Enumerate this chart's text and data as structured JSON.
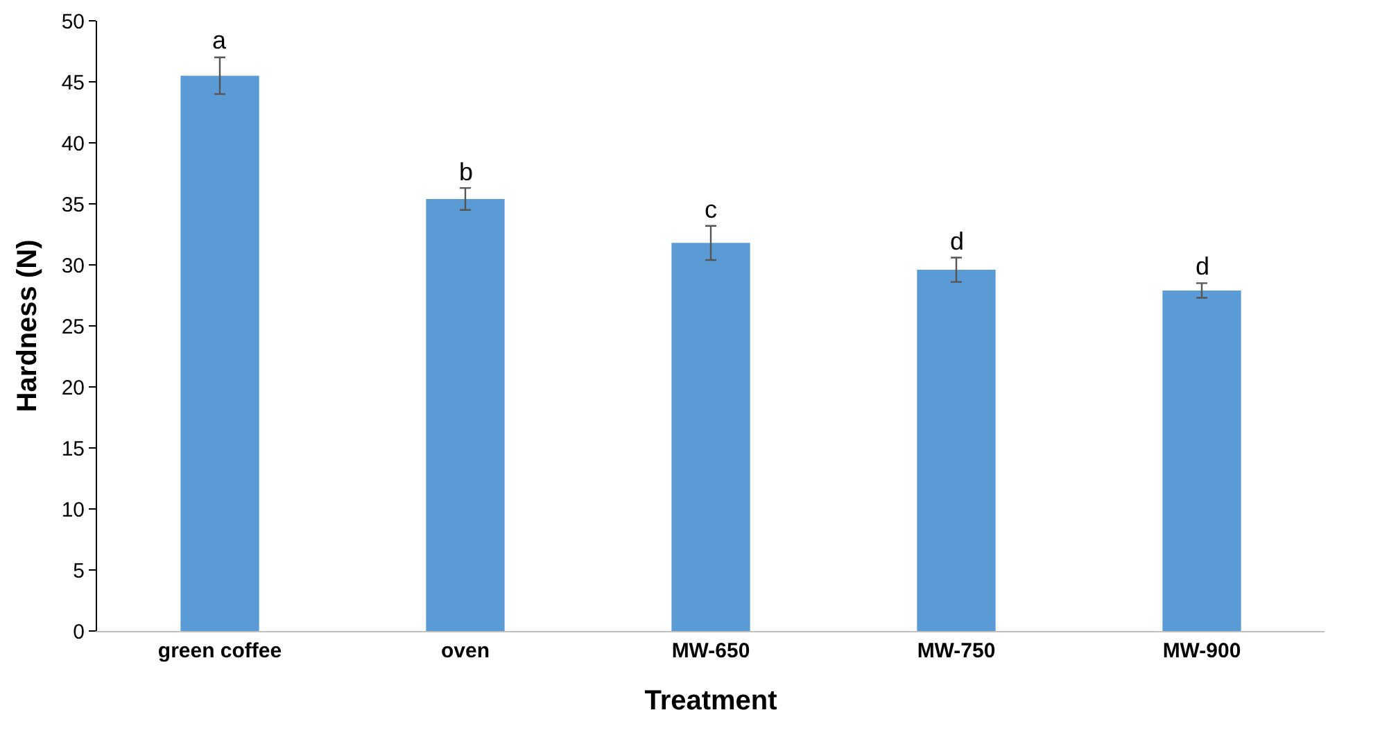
{
  "chart_data": {
    "type": "bar",
    "xlabel": "Treatment",
    "ylabel": "Hardness (N)",
    "categories": [
      "green coffee",
      "oven",
      "MW-650",
      "MW-750",
      "MW-900"
    ],
    "values": [
      45.5,
      35.4,
      31.8,
      29.6,
      27.9
    ],
    "errors": [
      1.5,
      0.9,
      1.4,
      1.0,
      0.6
    ],
    "color": "#5b9bd5",
    "ylim": [
      0,
      50
    ],
    "yticks": [
      0,
      5,
      10,
      15,
      20,
      25,
      30,
      35,
      40,
      45,
      50
    ],
    "grid": false,
    "annotations": [
      {
        "text": "a",
        "x": "green coffee",
        "y": 47
      },
      {
        "text": "b",
        "x": "oven",
        "y": 36.3
      },
      {
        "text": "c",
        "x": "MW-650",
        "y": 33.2
      },
      {
        "text": "d",
        "x": "MW-750",
        "y": 30.6
      },
      {
        "text": "d",
        "x": "MW-900",
        "y": 28.5
      }
    ]
  }
}
